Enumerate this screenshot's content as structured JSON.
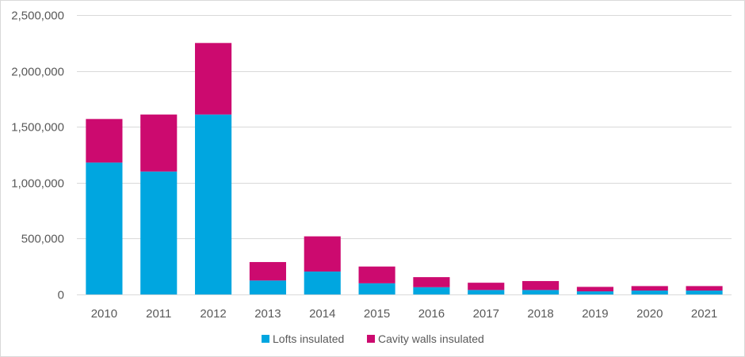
{
  "chart_data": {
    "type": "bar",
    "stacked": true,
    "title": "",
    "xlabel": "",
    "ylabel": "",
    "categories": [
      "2010",
      "2011",
      "2012",
      "2013",
      "2014",
      "2015",
      "2016",
      "2017",
      "2018",
      "2019",
      "2020",
      "2021"
    ],
    "series": [
      {
        "name": "Lofts insulated",
        "color": "#00a6e0",
        "values": [
          1180000,
          1100000,
          1610000,
          125000,
          205000,
          100000,
          65000,
          40000,
          40000,
          28000,
          35000,
          35000
        ]
      },
      {
        "name": "Cavity walls insulated",
        "color": "#cc0a6f",
        "values": [
          390000,
          510000,
          640000,
          165000,
          315000,
          150000,
          90000,
          65000,
          80000,
          40000,
          40000,
          40000
        ]
      }
    ],
    "ylim": [
      0,
      2500000
    ],
    "yticks": [
      0,
      500000,
      1000000,
      1500000,
      2000000,
      2500000
    ],
    "ytick_labels": [
      "0",
      "500,000",
      "1,000,000",
      "1,500,000",
      "2,000,000",
      "2,500,000"
    ],
    "grid": true,
    "legend_position": "bottom",
    "colors": {
      "gridline": "#d9d9d9",
      "axis": "#d9d9d9",
      "text": "#595959"
    }
  }
}
